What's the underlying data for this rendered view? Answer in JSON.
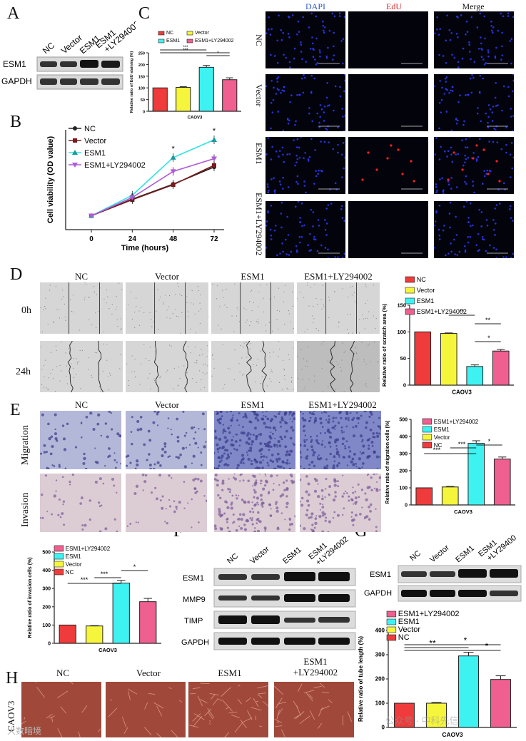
{
  "panel_letters": {
    "a": "A",
    "b": "B",
    "c": "C",
    "d": "D",
    "e": "E",
    "f": "F",
    "g": "G",
    "h": "H"
  },
  "groups": [
    "NC",
    "Vector",
    "ESM1",
    "ESM1+LY294002"
  ],
  "group_labels_stacked": [
    "NC",
    "Vector",
    "ESM1",
    "ESM1\n+LY294002"
  ],
  "panel_a": {
    "rows": [
      "ESM1",
      "GAPDH"
    ]
  },
  "panel_c_micro": {
    "columns": [
      {
        "label": "DAPI",
        "color": "#2b5ac6"
      },
      {
        "label": "EdU",
        "color": "#d62b2b"
      },
      {
        "label": "Merge",
        "color": "#222222"
      }
    ],
    "rows": [
      "NC",
      "Vector",
      "ESM1",
      "ESM1+LY294002"
    ]
  },
  "panel_d": {
    "rows": [
      "0h",
      "24h"
    ]
  },
  "panel_e": {
    "rows": [
      "Migration",
      "Invasion"
    ]
  },
  "panel_f": {
    "rows": [
      "ESM1",
      "MMP9",
      "TIMP",
      "GAPDH"
    ]
  },
  "panel_g": {
    "rows": [
      "ESM1",
      "GAPDH"
    ]
  },
  "panel_h": {
    "side": "CAOV3",
    "labels": [
      "NC",
      "Vector",
      "ESM1",
      "ESM1\n+LY294002"
    ]
  },
  "colors": {
    "nc": "#ef3b3b",
    "vector": "#f5f53c",
    "esm1": "#3ef2f2",
    "ly": "#ef5f8f",
    "blue_nucleus": "#2a3cff",
    "red_nucleus": "#ff2020"
  },
  "watermark": {
    "left": "大数暗境",
    "right": "公众号 · 中科先信"
  },
  "chart_data": [
    {
      "id": "C",
      "type": "bar",
      "categories": [
        "NC",
        "Vector",
        "ESM1",
        "ESM1+LY294002"
      ],
      "values": [
        100,
        102,
        188,
        135
      ],
      "errors": [
        0,
        3,
        8,
        8
      ],
      "ylabel": "Relative ratio of EdU staining (%)",
      "xlabel": "CAOV3",
      "ylim": [
        0,
        250
      ],
      "yticks": [
        0,
        50,
        100,
        150,
        200,
        250
      ],
      "legend": [
        "NC",
        "Vector",
        "ESM1",
        "ESM1+LY294002"
      ],
      "sig": [
        "***",
        "***",
        "*"
      ]
    },
    {
      "id": "B",
      "type": "line",
      "x": [
        0,
        24,
        48,
        72
      ],
      "series": [
        {
          "name": "NC",
          "values": [
            0.45,
            0.75,
            1.02,
            1.33
          ]
        },
        {
          "name": "Vector",
          "values": [
            0.45,
            0.74,
            1.01,
            1.36
          ]
        },
        {
          "name": "ESM1",
          "values": [
            0.45,
            0.82,
            1.5,
            1.82
          ]
        },
        {
          "name": "ESM1+LY294002",
          "values": [
            0.45,
            0.78,
            1.25,
            1.48
          ]
        }
      ],
      "xlabel": "Time (hours)",
      "ylabel": "Cell viability (OD value)",
      "xticks": [
        0,
        24,
        48,
        72
      ],
      "sig_points": [
        {
          "x": 48,
          "label": "*"
        },
        {
          "x": 72,
          "label": "*"
        }
      ]
    },
    {
      "id": "D",
      "type": "bar",
      "categories": [
        "NC",
        "Vector",
        "ESM1",
        "ESM1+LY294002"
      ],
      "values": [
        100,
        97,
        35,
        64
      ],
      "errors": [
        0,
        1,
        3,
        3
      ],
      "ylabel": "Relative ratio of scratch area (%)",
      "xlabel": "CAOV3",
      "ylim": [
        0,
        150
      ],
      "yticks": [
        0,
        50,
        100,
        150
      ],
      "legend": [
        "NC",
        "Vector",
        "ESM1",
        "ESM1+LY294002"
      ],
      "sig": [
        "**",
        "**",
        "*"
      ]
    },
    {
      "id": "E",
      "type": "bar",
      "categories": [
        "NC",
        "Vector",
        "ESM1",
        "ESM1+LY294002"
      ],
      "values": [
        100,
        105,
        360,
        268
      ],
      "errors": [
        0,
        3,
        15,
        12
      ],
      "ylabel": "Relative ratio of migration cells (%)",
      "xlabel": "CAOV3",
      "ylim": [
        0,
        500
      ],
      "yticks": [
        0,
        100,
        200,
        300,
        400,
        500
      ],
      "legend": [
        "ESM1+LY294002",
        "ESM1",
        "Vector",
        "NC"
      ],
      "sig": [
        "***",
        "***",
        "*"
      ]
    },
    {
      "id": "E2",
      "type": "bar",
      "categories": [
        "NC",
        "Vector",
        "ESM1",
        "ESM1+LY294002"
      ],
      "values": [
        100,
        95,
        330,
        228
      ],
      "errors": [
        0,
        2,
        15,
        18
      ],
      "ylabel": "Relative ratio of invasion cells (%)",
      "xlabel": "CAOV3",
      "ylim": [
        0,
        500
      ],
      "yticks": [
        0,
        100,
        200,
        300,
        400,
        500
      ],
      "legend": [
        "ESM1+LY294002",
        "ESM1",
        "Vector",
        "NC"
      ],
      "sig": [
        "***",
        "***",
        "*"
      ]
    },
    {
      "id": "H",
      "type": "bar",
      "categories": [
        "NC",
        "Vector",
        "ESM1",
        "ESM1+LY294002"
      ],
      "values": [
        100,
        100,
        295,
        198
      ],
      "errors": [
        0,
        3,
        15,
        15
      ],
      "ylabel": "Relative ratio of tube length (%)",
      "xlabel": "CAOV3",
      "ylim": [
        0,
        400
      ],
      "yticks": [
        0,
        100,
        200,
        300,
        400
      ],
      "legend": [
        "ESM1+LY294002",
        "ESM1",
        "Vector",
        "NC"
      ],
      "sig": [
        "**",
        "*",
        "*"
      ]
    }
  ]
}
